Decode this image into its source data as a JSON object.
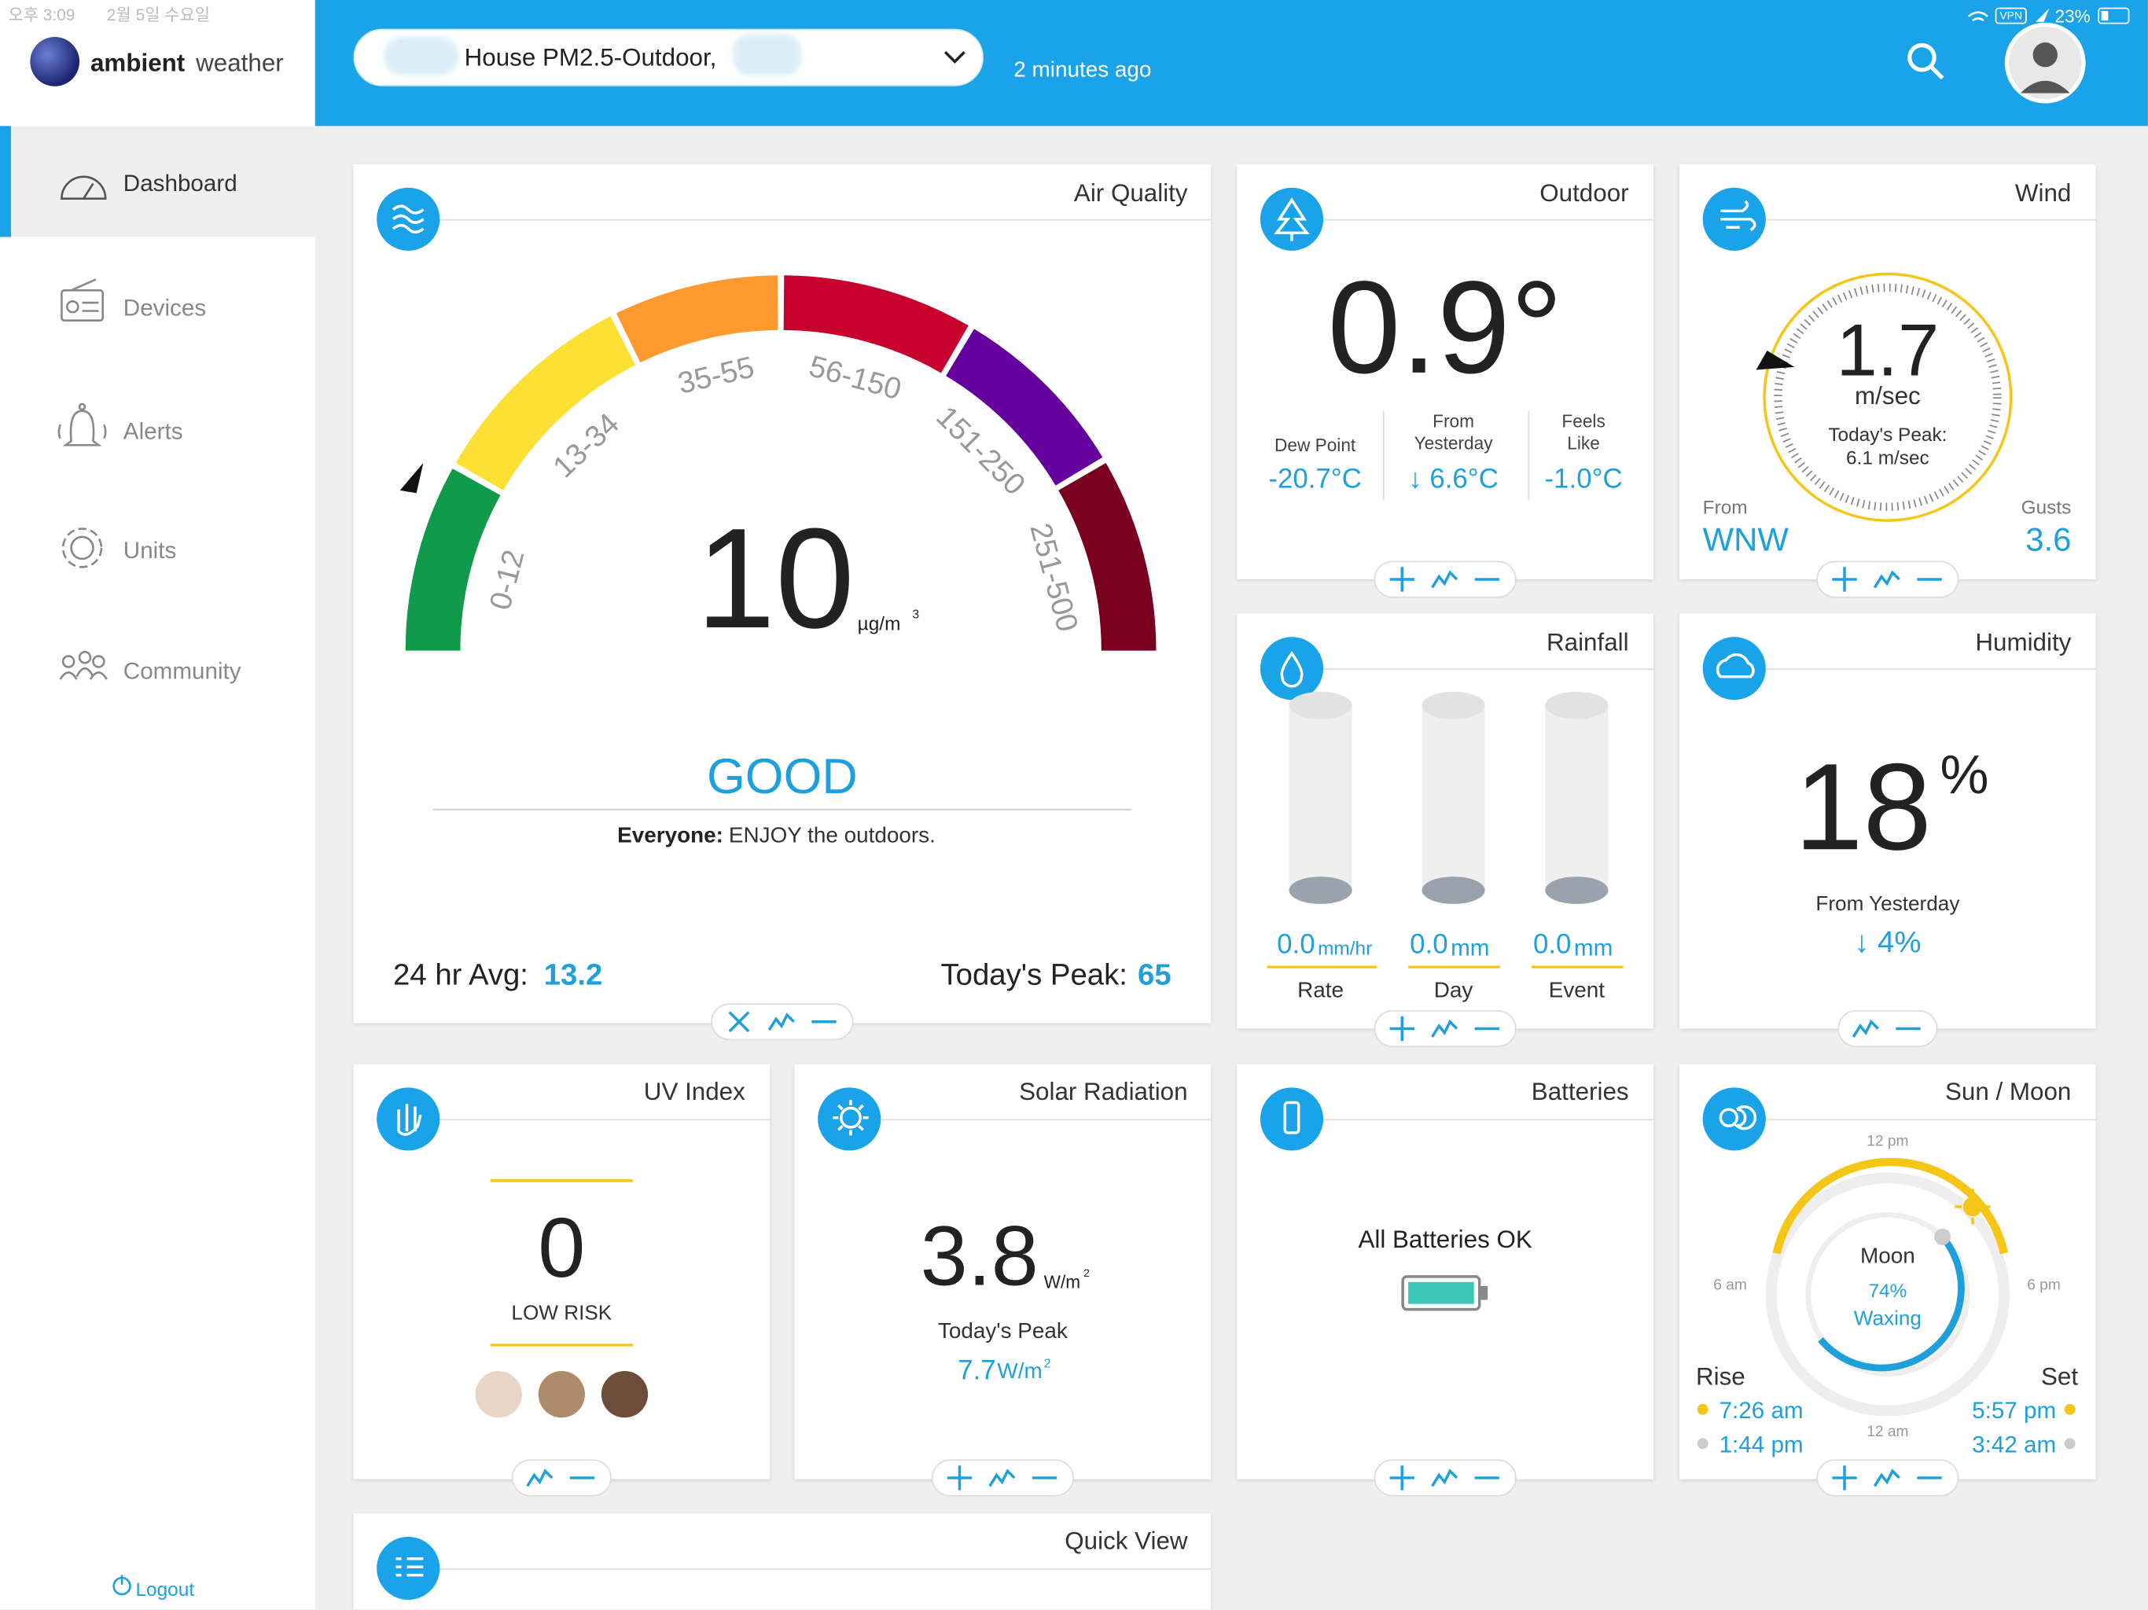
{
  "status_bar": {
    "time": "오후 3:09",
    "date": "2월 5일 수요일",
    "vpn": "VPN",
    "battery": "23%"
  },
  "sidebar": {
    "brand_bold": "ambient",
    "brand_light": "weather",
    "nav": [
      {
        "label": "Dashboard"
      },
      {
        "label": "Devices"
      },
      {
        "label": "Alerts"
      },
      {
        "label": "Units"
      },
      {
        "label": "Community"
      }
    ],
    "logout": "Logout"
  },
  "header": {
    "device": "House PM2.5-Outdoor,",
    "updated": "2 minutes ago"
  },
  "air_quality": {
    "title": "Air Quality",
    "ranges": [
      "0-12",
      "13-34",
      "35-55",
      "56-150",
      "151-250",
      "251-500"
    ],
    "value": "10",
    "unit": "µg/m",
    "unit_sup": "3",
    "status": "GOOD",
    "advice_label": "Everyone:",
    "advice": "ENJOY the outdoors.",
    "avg_label": "24 hr Avg:",
    "avg": "13.2",
    "peak_label": "Today's Peak:",
    "peak": "65"
  },
  "outdoor": {
    "title": "Outdoor",
    "temperature": "0.9°",
    "dew_point_label": "Dew Point",
    "dew_point": "-20.7°C",
    "from_yesterday_label": "From Yesterday",
    "from_yesterday": "↓ 6.6°C",
    "feels_like_label": "Feels Like",
    "feels_like": "-1.0°C"
  },
  "wind": {
    "title": "Wind",
    "speed": "1.7",
    "unit": "m/sec",
    "peak_label": "Today's Peak:",
    "peak": "6.1 m/sec",
    "from_label": "From",
    "direction": "WNW",
    "gusts_label": "Gusts",
    "gusts": "3.6"
  },
  "rainfall": {
    "title": "Rainfall",
    "items": [
      {
        "value": "0.0",
        "unit": "mm/hr",
        "label": "Rate"
      },
      {
        "value": "0.0",
        "unit": "mm",
        "label": "Day"
      },
      {
        "value": "0.0",
        "unit": "mm",
        "label": "Event"
      }
    ]
  },
  "humidity": {
    "title": "Humidity",
    "value": "18",
    "unit": "%",
    "from_label": "From Yesterday",
    "change": "↓ 4%"
  },
  "uv_index": {
    "title": "UV Index",
    "value": "0",
    "risk": "LOW RISK"
  },
  "solar_radiation": {
    "title": "Solar Radiation",
    "value": "3.8",
    "unit": "W/m",
    "unit_sup": "2",
    "peak_label": "Today's Peak",
    "peak": "7.7",
    "peak_unit": "W/m",
    "peak_unit_sup": "2"
  },
  "batteries": {
    "title": "Batteries",
    "status": "All Batteries OK"
  },
  "sun_moon": {
    "title": "Sun / Moon",
    "noon": "12 pm",
    "morning": "6 am",
    "evening": "6 pm",
    "midnight": "12 am",
    "moon_label": "Moon",
    "moon_percent": "74%",
    "moon_phase": "Waxing",
    "rise_label": "Rise",
    "set_label": "Set",
    "sun_rise": "7:26 am",
    "moon_rise": "1:44 pm",
    "sun_set": "5:57 pm",
    "moon_set": "3:42 am"
  },
  "quick_view": {
    "title": "Quick View"
  }
}
